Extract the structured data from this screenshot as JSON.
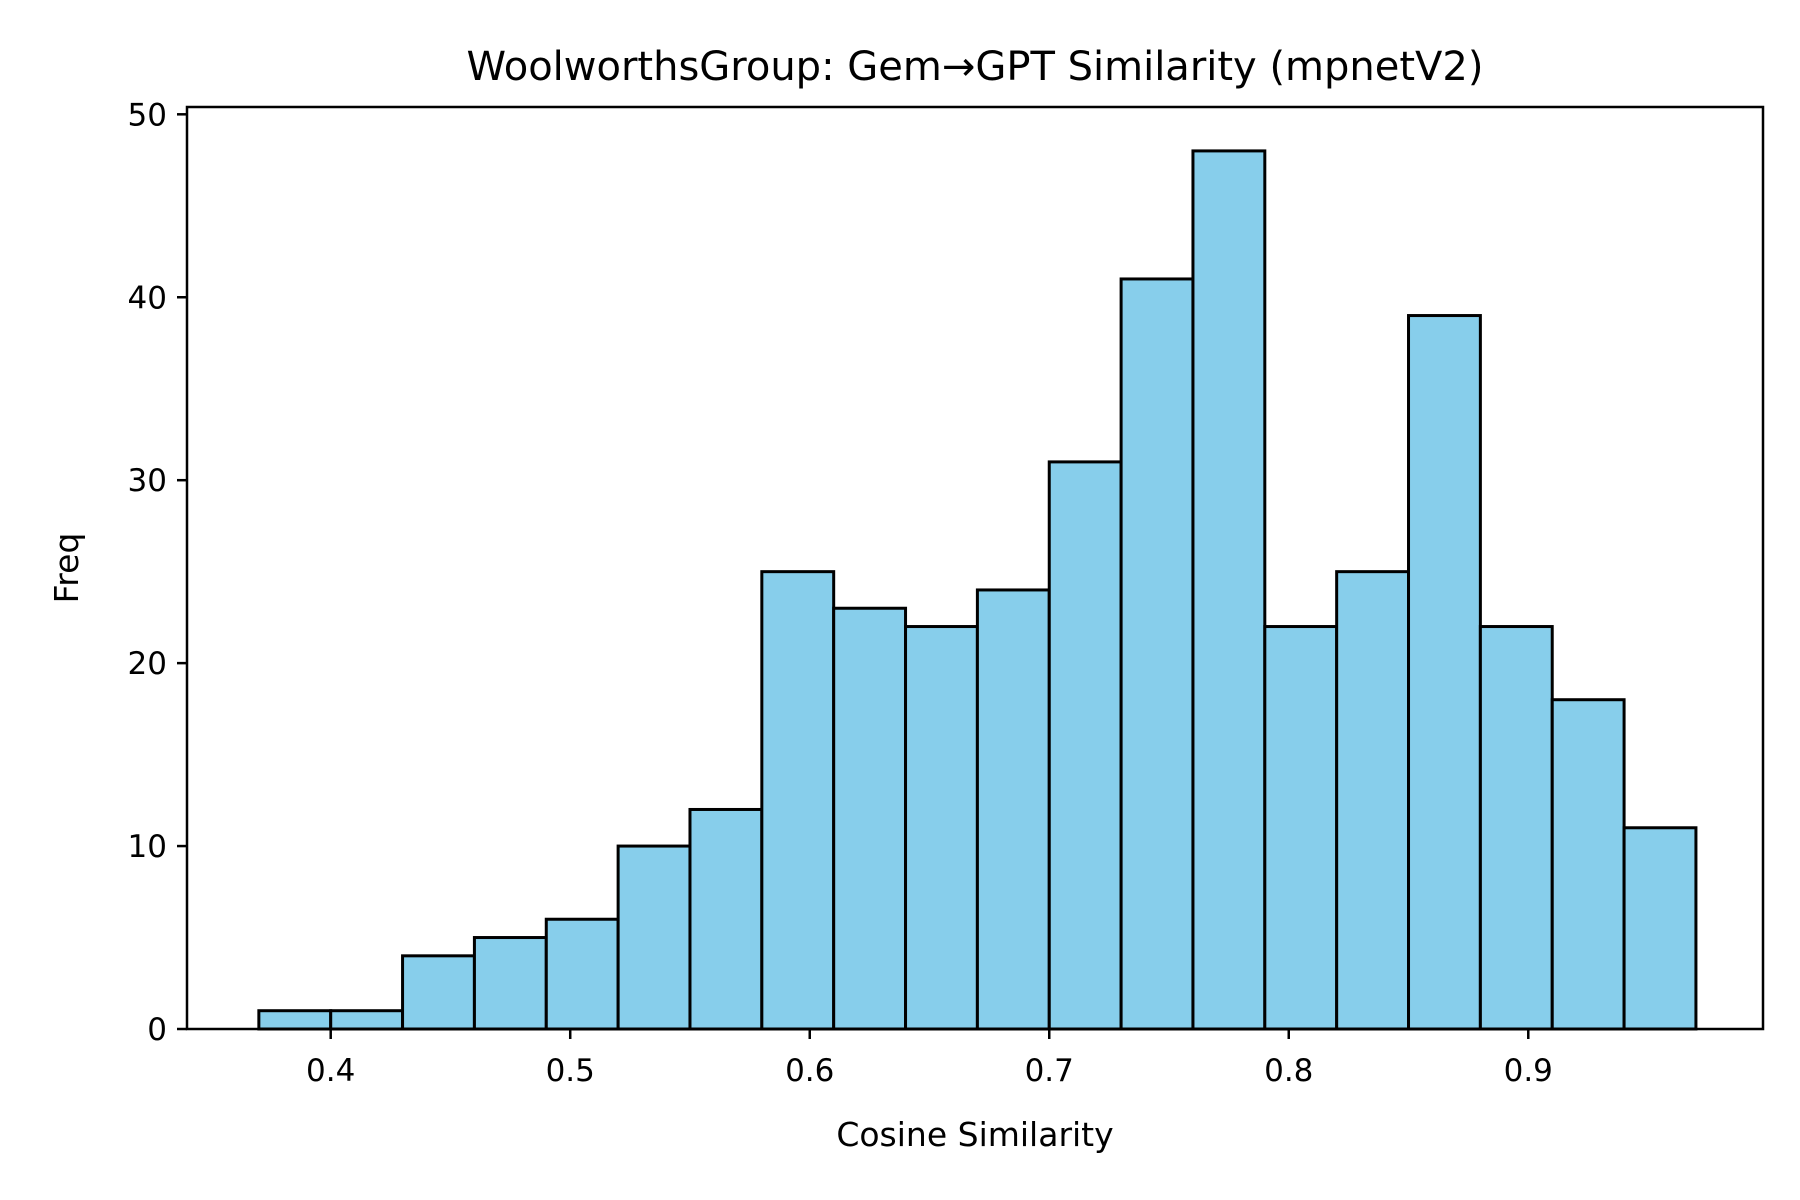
{
  "chart_data": {
    "type": "bar",
    "title": "WoolworthsGroup: Gem→GPT Similarity (mpnetV2)",
    "xlabel": "Cosine Similarity",
    "ylabel": "Freq",
    "bar_color": "#87ceeb",
    "edge_color": "#000000",
    "xlim": [
      0.34,
      0.998
    ],
    "ylim": [
      0,
      50.4
    ],
    "xticks": [
      0.4,
      0.5,
      0.6,
      0.7,
      0.8,
      0.9
    ],
    "xtick_labels": [
      "0.4",
      "0.5",
      "0.6",
      "0.7",
      "0.8",
      "0.9"
    ],
    "yticks": [
      0,
      10,
      20,
      30,
      40,
      50
    ],
    "ytick_labels": [
      "0",
      "10",
      "20",
      "30",
      "40",
      "50"
    ],
    "bin_edges": [
      0.37,
      0.4,
      0.43,
      0.46,
      0.49,
      0.52,
      0.55,
      0.58,
      0.61,
      0.64,
      0.67,
      0.7,
      0.73,
      0.76,
      0.79,
      0.82,
      0.85,
      0.88,
      0.91,
      0.94,
      0.97
    ],
    "values": [
      1,
      1,
      4,
      5,
      6,
      10,
      12,
      25,
      23,
      22,
      24,
      31,
      41,
      48,
      22,
      25,
      39,
      22,
      18,
      11
    ],
    "grid": false,
    "legend": "none"
  }
}
